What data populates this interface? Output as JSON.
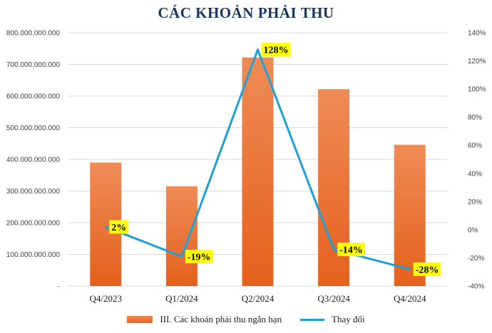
{
  "chart_data": {
    "type": "bar",
    "title": "CÁC KHOẢN PHẢI THU",
    "categories": [
      "Q4/2023",
      "Q1/2024",
      "Q2/2024",
      "Q3/2024",
      "Q4/2024"
    ],
    "series": [
      {
        "name": "III. Các khoản phải thu ngắn hạn",
        "type": "bar",
        "axis": "left",
        "values": [
          390000000000,
          315000000000,
          722000000000,
          622000000000,
          446000000000
        ],
        "color": "#ec7031"
      },
      {
        "name": "Thay đổi",
        "type": "line",
        "axis": "right",
        "values": [
          2,
          -19,
          128,
          -14,
          -28
        ],
        "data_labels": [
          "2%",
          "-19%",
          "128%",
          "-14%",
          "-28%"
        ],
        "color": "#1ea0d4"
      }
    ],
    "y_left": {
      "ylim": [
        0,
        800000000000
      ],
      "ticks": [
        0,
        100000000000,
        200000000000,
        300000000000,
        400000000000,
        500000000000,
        600000000000,
        700000000000,
        800000000000
      ],
      "tick_labels": [
        "-",
        "100.000.000.000",
        "200.000.000.000",
        "300.000.000.000",
        "400.000.000.000",
        "500.000.000.000",
        "600.000.000.000",
        "700.000.000.000",
        "800.000.000.000"
      ]
    },
    "y_right": {
      "ylim": [
        -40,
        140
      ],
      "ticks": [
        -40,
        -20,
        0,
        20,
        40,
        60,
        80,
        100,
        120,
        140
      ],
      "tick_labels": [
        "-40%",
        "-20%",
        "0%",
        "20%",
        "40%",
        "60%",
        "80%",
        "100%",
        "120%",
        "140%"
      ]
    },
    "grid": true,
    "legend_position": "bottom",
    "label_background": "#ffff00"
  }
}
